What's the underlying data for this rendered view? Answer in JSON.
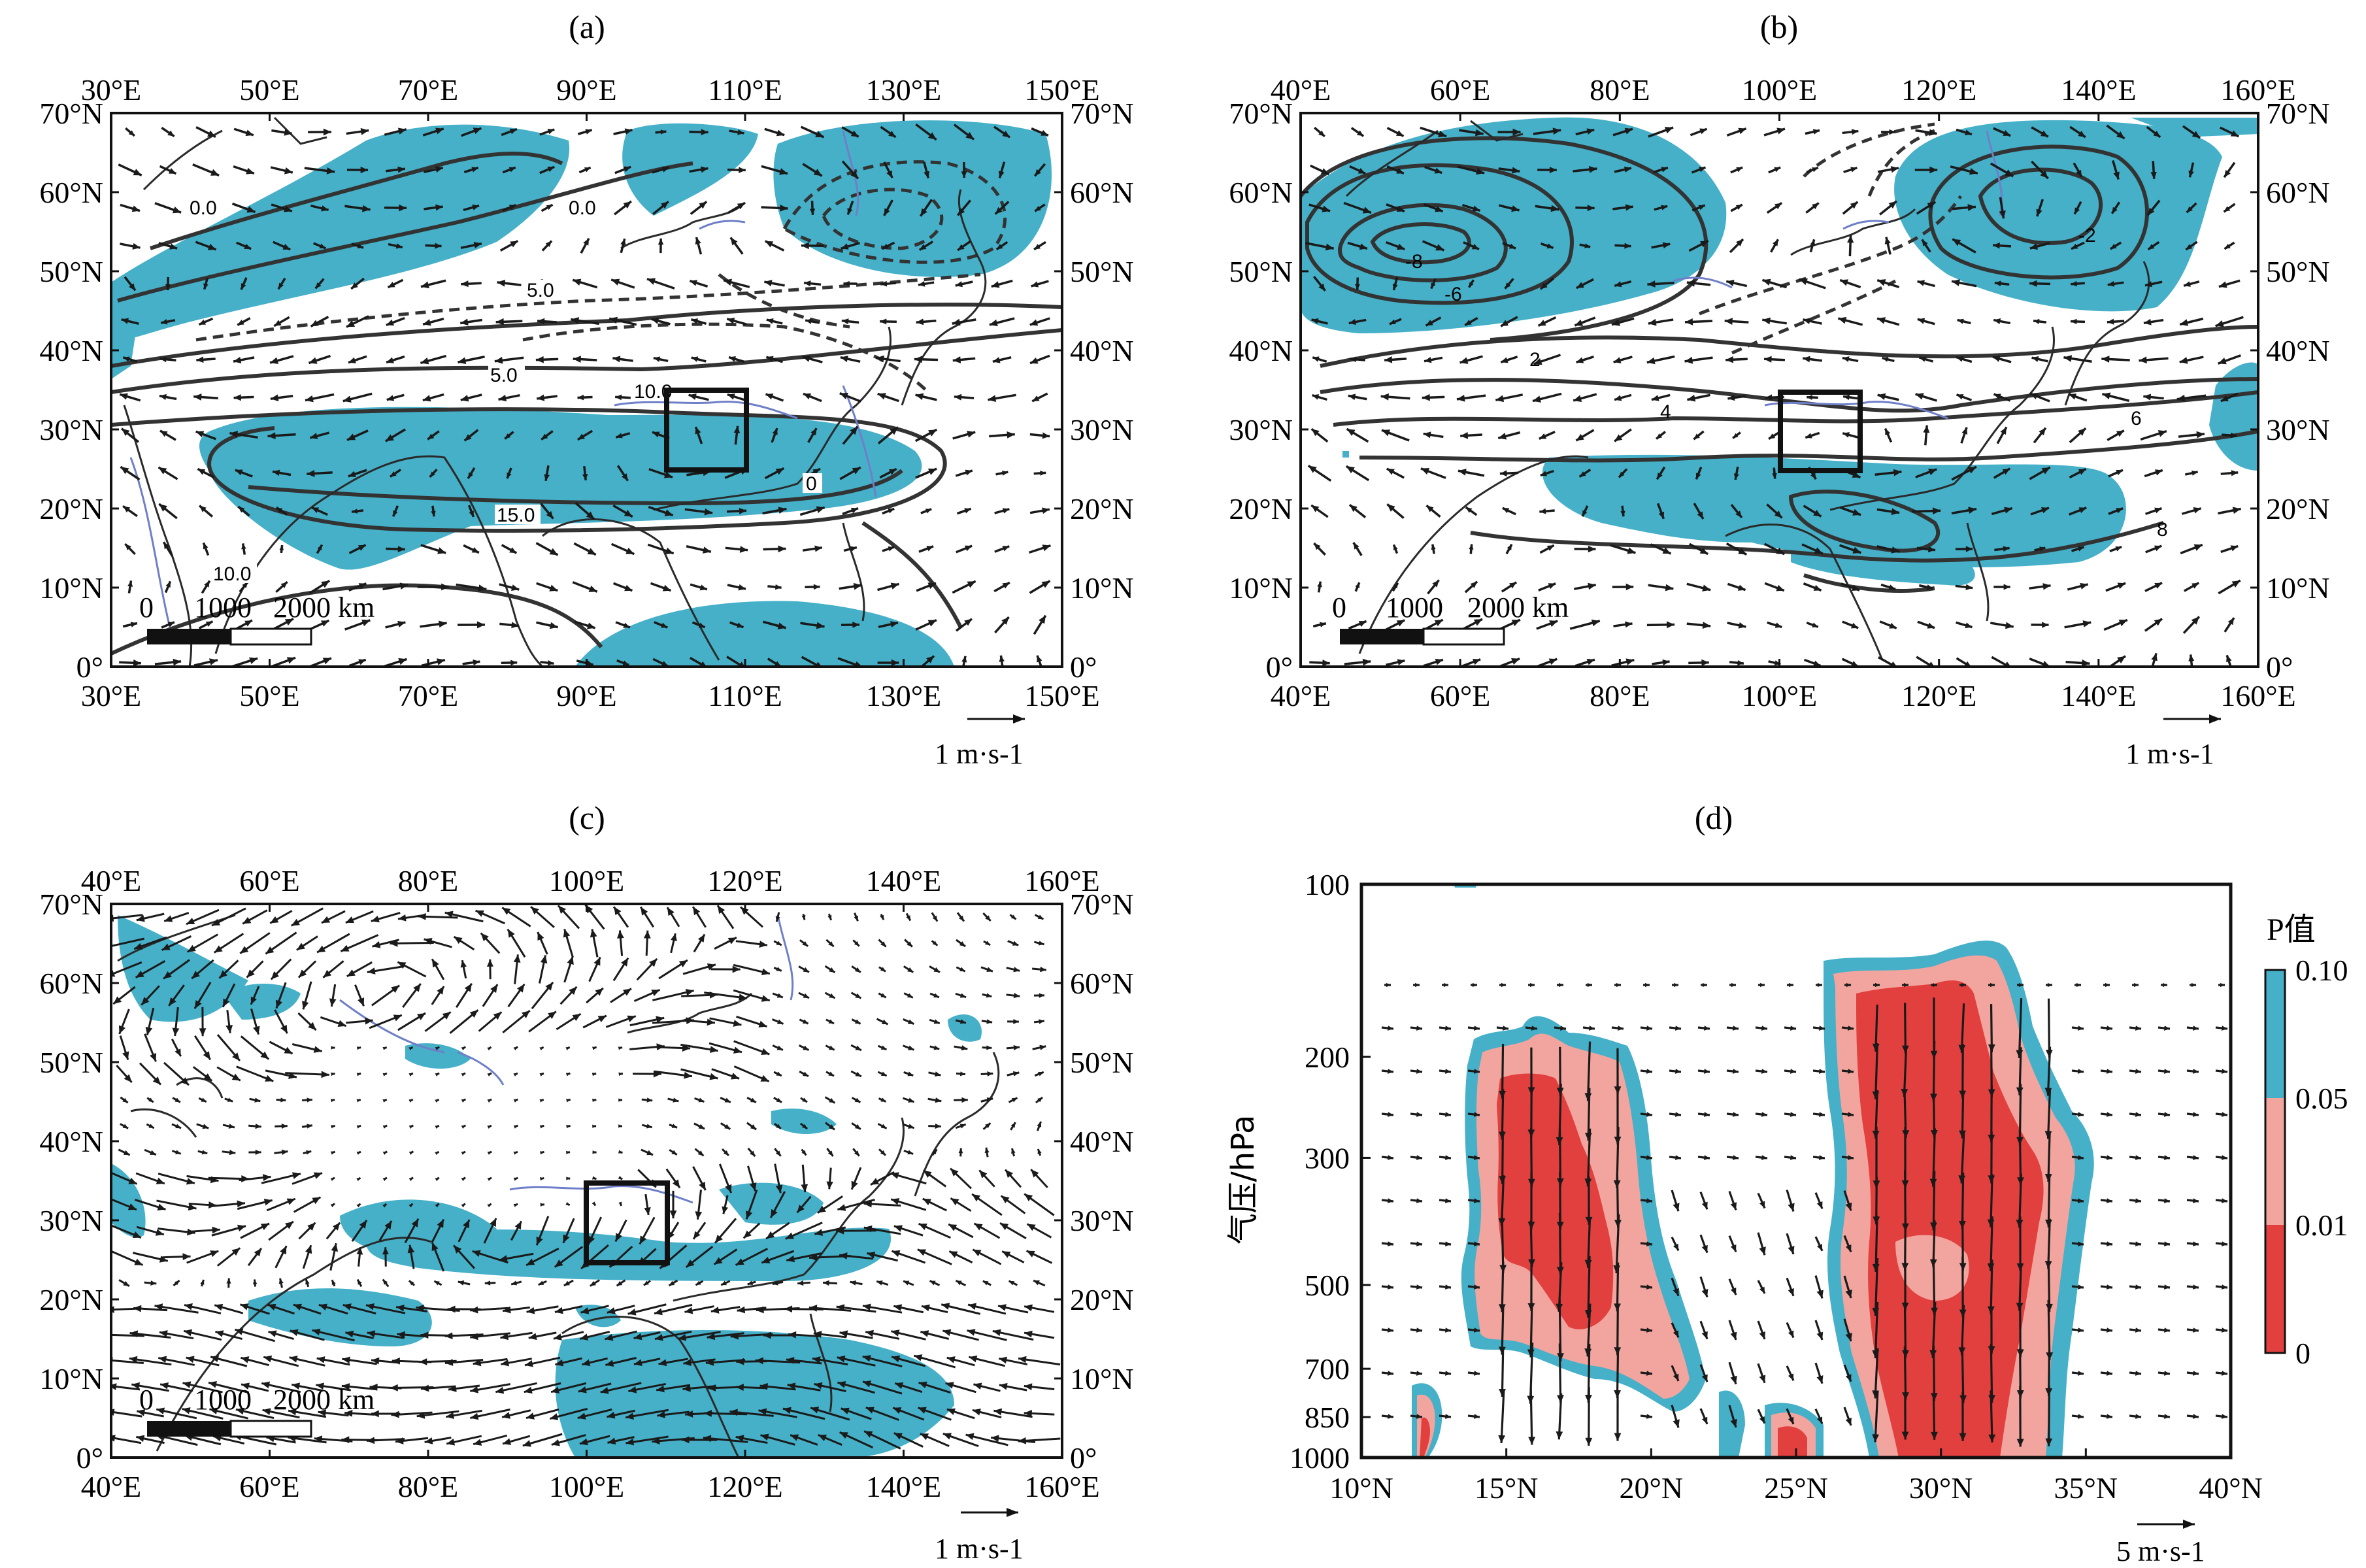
{
  "colors": {
    "shade": "#45b0c8",
    "red_dark": "#e2403f",
    "red_light": "#f2a59e",
    "teal": "#45b0c8",
    "vector": "#222222",
    "contour": "#333333",
    "river": "#6f7fc8"
  },
  "panels": [
    {
      "id": "a",
      "label": "(a)",
      "lon_ticks": [
        "30°E",
        "50°E",
        "70°E",
        "90°E",
        "110°E",
        "130°E",
        "150°E"
      ],
      "lat_ticks": [
        "0°",
        "10°N",
        "20°N",
        "30°N",
        "40°N",
        "50°N",
        "60°N",
        "70°N"
      ],
      "scale_bar": {
        "zero": "0",
        "mid": "1000",
        "end": "2000 km"
      },
      "ref_vector": "1 m·s-1",
      "contour_labels": [
        "0.0",
        "0.0",
        "5.0",
        "5.0",
        "10.0",
        "15.0",
        "10.0",
        "0"
      ],
      "region_box": "100–110°E, 25–35°N"
    },
    {
      "id": "b",
      "label": "(b)",
      "lon_ticks": [
        "40°E",
        "60°E",
        "80°E",
        "100°E",
        "120°E",
        "140°E",
        "160°E"
      ],
      "lat_ticks": [
        "0°",
        "10°N",
        "20°N",
        "30°N",
        "40°N",
        "50°N",
        "60°N",
        "70°N"
      ],
      "scale_bar": {
        "zero": "0",
        "mid": "1000",
        "end": "2000 km"
      },
      "ref_vector": "1 m·s-1",
      "contour_labels": [
        "-8",
        "-6",
        "2",
        "4",
        "6",
        "-2",
        "8"
      ],
      "region_box": "100–110°E, 25–35°N"
    },
    {
      "id": "c",
      "label": "(c)",
      "lon_ticks": [
        "40°E",
        "60°E",
        "80°E",
        "100°E",
        "120°E",
        "140°E",
        "160°E"
      ],
      "lat_ticks": [
        "0°",
        "10°N",
        "20°N",
        "30°N",
        "40°N",
        "50°N",
        "60°N",
        "70°N"
      ],
      "scale_bar": {
        "zero": "0",
        "mid": "1000",
        "end": "2000 km"
      },
      "ref_vector": "1 m·s-1",
      "region_box": "100–110°E, 25–35°N"
    },
    {
      "id": "d",
      "label": "(d)",
      "lat_ticks": [
        "10°N",
        "15°N",
        "20°N",
        "25°N",
        "30°N",
        "35°N",
        "40°N"
      ],
      "p_ticks": [
        "100",
        "200",
        "300",
        "500",
        "700",
        "850",
        "1000"
      ],
      "ylabel": "气压/hPa",
      "ref_vector": "5 m·s-1",
      "colorbar": {
        "title": "P值",
        "ticks": [
          "0",
          "0.01",
          "0.05",
          "0.10"
        ]
      }
    }
  ]
}
